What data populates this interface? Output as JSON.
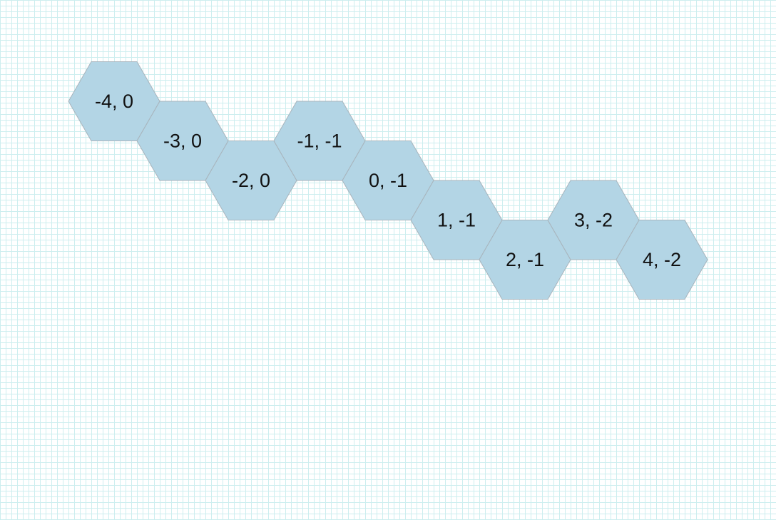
{
  "grid": {
    "line_color": "#cdeeef",
    "background_color": "#ffffff"
  },
  "hex_style": {
    "fill": "#b3d5e5",
    "stroke": "#a8b4bc",
    "label_color": "#111111"
  },
  "hexes": [
    {
      "q": -4,
      "r": 0,
      "label": "-4, 0"
    },
    {
      "q": -3,
      "r": 0,
      "label": "-3, 0"
    },
    {
      "q": -2,
      "r": 0,
      "label": "-2, 0"
    },
    {
      "q": -1,
      "r": -1,
      "label": "-1, -1"
    },
    {
      "q": 0,
      "r": -1,
      "label": "0, -1"
    },
    {
      "q": 1,
      "r": -1,
      "label": "1, -1"
    },
    {
      "q": 2,
      "r": -1,
      "label": "2, -1"
    },
    {
      "q": 3,
      "r": -2,
      "label": "3, -2"
    },
    {
      "q": 4,
      "r": -2,
      "label": "4, -2"
    }
  ]
}
